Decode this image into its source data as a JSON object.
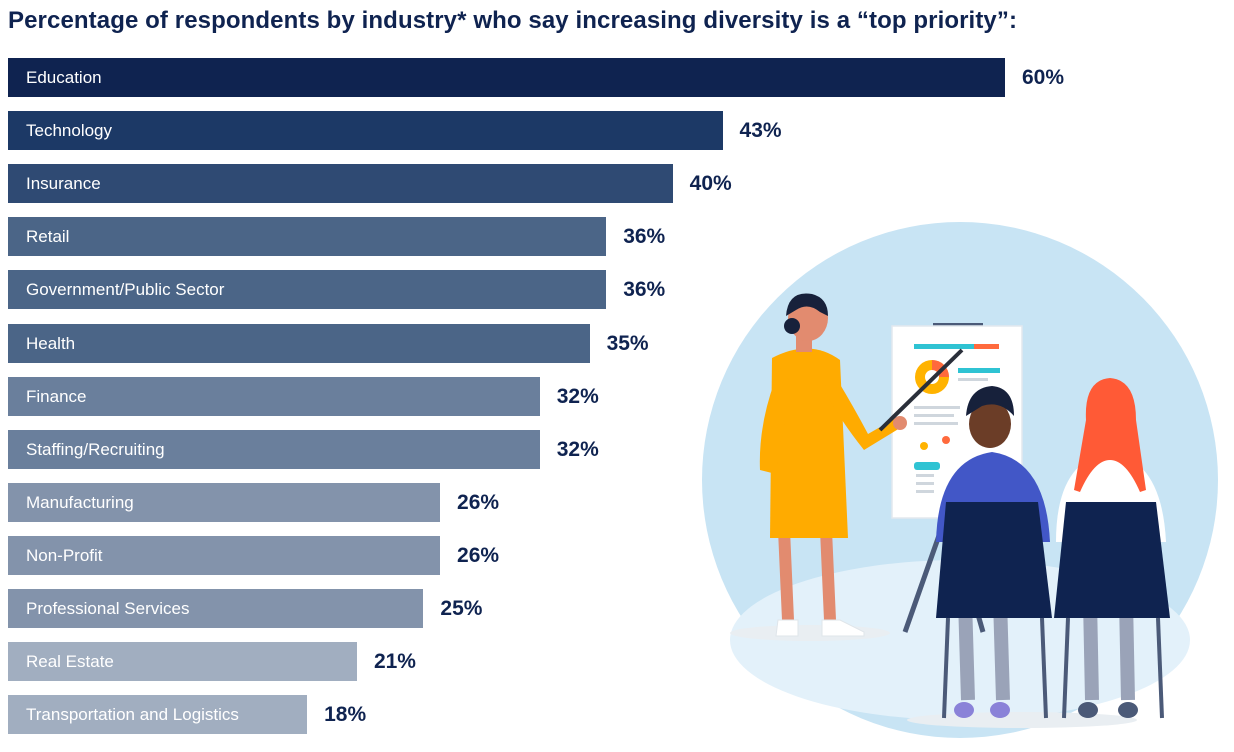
{
  "chart_data": {
    "type": "bar",
    "orientation": "horizontal",
    "title": "Percentage of respondents by industry* who say increasing diversity is a “top priority”:",
    "categories": [
      "Education",
      "Technology",
      "Insurance",
      "Retail",
      "Government/Public Sector",
      "Health",
      "Finance",
      "Staffing/Recruiting",
      "Manufacturing",
      "Non-Profit",
      "Professional Services",
      "Real Estate",
      "Transportation and Logistics"
    ],
    "values": [
      60,
      43,
      40,
      36,
      36,
      35,
      32,
      32,
      26,
      26,
      25,
      21,
      18
    ],
    "value_labels": [
      "60%",
      "43%",
      "40%",
      "36%",
      "36%",
      "35%",
      "32%",
      "32%",
      "26%",
      "26%",
      "25%",
      "21%",
      "18%"
    ],
    "bar_colors": [
      "#0f2350",
      "#1c3966",
      "#2f4a73",
      "#4b6587",
      "#4b6587",
      "#4b6587",
      "#6a7f9c",
      "#6a7f9c",
      "#8393ab",
      "#8393ab",
      "#8393ab",
      "#a1aec0",
      "#a1aec0"
    ],
    "xlim": [
      0,
      60
    ],
    "grid": false,
    "legend": "none"
  },
  "illustration": {
    "icon": "presentation-illustration"
  }
}
